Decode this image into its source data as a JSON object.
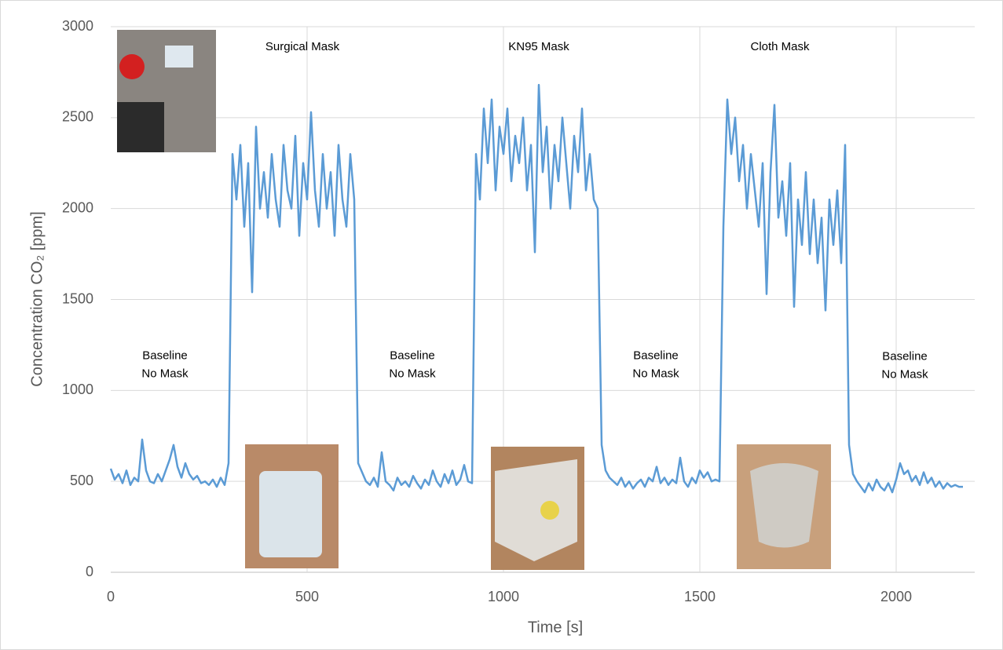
{
  "chart_data": {
    "type": "line",
    "xlabel": "Time [s]",
    "ylabel": "Concentration CO₂ [ppm]",
    "xlim": [
      0,
      2200
    ],
    "ylim": [
      0,
      3000
    ],
    "xticks": [
      0,
      500,
      1000,
      1500,
      2000
    ],
    "yticks": [
      0,
      500,
      1000,
      1500,
      2000,
      2500,
      3000
    ],
    "grid": true,
    "annotations": [
      {
        "lines": [
          "Baseline",
          "No Mask"
        ]
      },
      {
        "lines": [
          "Surgical Mask"
        ]
      },
      {
        "lines": [
          "Baseline",
          "No Mask"
        ]
      },
      {
        "lines": [
          "KN95 Mask"
        ]
      },
      {
        "lines": [
          "Baseline",
          "No Mask"
        ]
      },
      {
        "lines": [
          "Cloth Mask"
        ]
      },
      {
        "lines": [
          "Baseline",
          "No Mask"
        ]
      }
    ],
    "x": [
      0,
      10,
      20,
      30,
      40,
      50,
      60,
      70,
      80,
      90,
      100,
      110,
      120,
      130,
      140,
      150,
      160,
      170,
      180,
      190,
      200,
      210,
      220,
      230,
      240,
      250,
      260,
      270,
      280,
      290,
      300,
      310,
      320,
      330,
      340,
      350,
      360,
      370,
      380,
      390,
      400,
      410,
      420,
      430,
      440,
      450,
      460,
      470,
      480,
      490,
      500,
      510,
      520,
      530,
      540,
      550,
      560,
      570,
      580,
      590,
      600,
      610,
      620,
      630,
      640,
      650,
      660,
      670,
      680,
      690,
      700,
      710,
      720,
      730,
      740,
      750,
      760,
      770,
      780,
      790,
      800,
      810,
      820,
      830,
      840,
      850,
      860,
      870,
      880,
      890,
      900,
      910,
      920,
      930,
      940,
      950,
      960,
      970,
      980,
      990,
      1000,
      1010,
      1020,
      1030,
      1040,
      1050,
      1060,
      1070,
      1080,
      1090,
      1100,
      1110,
      1120,
      1130,
      1140,
      1150,
      1160,
      1170,
      1180,
      1190,
      1200,
      1210,
      1220,
      1230,
      1240,
      1250,
      1260,
      1270,
      1280,
      1290,
      1300,
      1310,
      1320,
      1330,
      1340,
      1350,
      1360,
      1370,
      1380,
      1390,
      1400,
      1410,
      1420,
      1430,
      1440,
      1450,
      1460,
      1470,
      1480,
      1490,
      1500,
      1510,
      1520,
      1530,
      1540,
      1550,
      1560,
      1570,
      1580,
      1590,
      1600,
      1610,
      1620,
      1630,
      1640,
      1650,
      1660,
      1670,
      1680,
      1690,
      1700,
      1710,
      1720,
      1730,
      1740,
      1750,
      1760,
      1770,
      1780,
      1790,
      1800,
      1810,
      1820,
      1830,
      1840,
      1850,
      1860,
      1870,
      1880,
      1890,
      1900,
      1910,
      1920,
      1930,
      1940,
      1950,
      1960,
      1970,
      1980,
      1990,
      2000,
      2010,
      2020,
      2030,
      2040,
      2050,
      2060,
      2070,
      2080,
      2090,
      2100,
      2110,
      2120,
      2130,
      2140,
      2150,
      2160,
      2170
    ],
    "series": [
      {
        "color": "#5b9bd5",
        "values": [
          570,
          510,
          540,
          490,
          560,
          480,
          520,
          500,
          730,
          560,
          500,
          490,
          540,
          500,
          560,
          620,
          700,
          580,
          520,
          600,
          540,
          510,
          530,
          490,
          500,
          480,
          510,
          470,
          520,
          480,
          600,
          2300,
          2050,
          2350,
          1900,
          2250,
          1540,
          2450,
          2000,
          2200,
          1950,
          2300,
          2050,
          1900,
          2350,
          2100,
          2000,
          2400,
          1850,
          2250,
          2050,
          2530,
          2100,
          1900,
          2300,
          2000,
          2200,
          1850,
          2350,
          2050,
          1900,
          2300,
          2050,
          600,
          550,
          500,
          480,
          520,
          470,
          660,
          500,
          480,
          450,
          520,
          480,
          500,
          470,
          530,
          490,
          460,
          510,
          480,
          560,
          500,
          470,
          540,
          490,
          560,
          480,
          510,
          590,
          500,
          490,
          2300,
          2050,
          2550,
          2250,
          2600,
          2100,
          2450,
          2300,
          2550,
          2150,
          2400,
          2250,
          2500,
          2100,
          2350,
          1760,
          2680,
          2200,
          2450,
          2000,
          2350,
          2150,
          2500,
          2250,
          2000,
          2400,
          2200,
          2550,
          2100,
          2300,
          2050,
          2000,
          700,
          560,
          520,
          500,
          480,
          520,
          470,
          500,
          460,
          490,
          510,
          470,
          520,
          500,
          580,
          490,
          520,
          480,
          510,
          490,
          630,
          500,
          470,
          520,
          490,
          560,
          520,
          550,
          500,
          510,
          500,
          1900,
          2600,
          2300,
          2500,
          2150,
          2350,
          2000,
          2300,
          2100,
          1900,
          2250,
          1530,
          2200,
          2570,
          1950,
          2150,
          1850,
          2250,
          1460,
          2050,
          1800,
          2200,
          1750,
          2050,
          1700,
          1950,
          1440,
          2050,
          1800,
          2100,
          1700,
          2350,
          700,
          540,
          500,
          470,
          440,
          490,
          450,
          510,
          470,
          450,
          490,
          440,
          510,
          600,
          540,
          560,
          500,
          530,
          480,
          550,
          490,
          520,
          470,
          500,
          460,
          490,
          470,
          480,
          470,
          470
        ]
      }
    ]
  }
}
